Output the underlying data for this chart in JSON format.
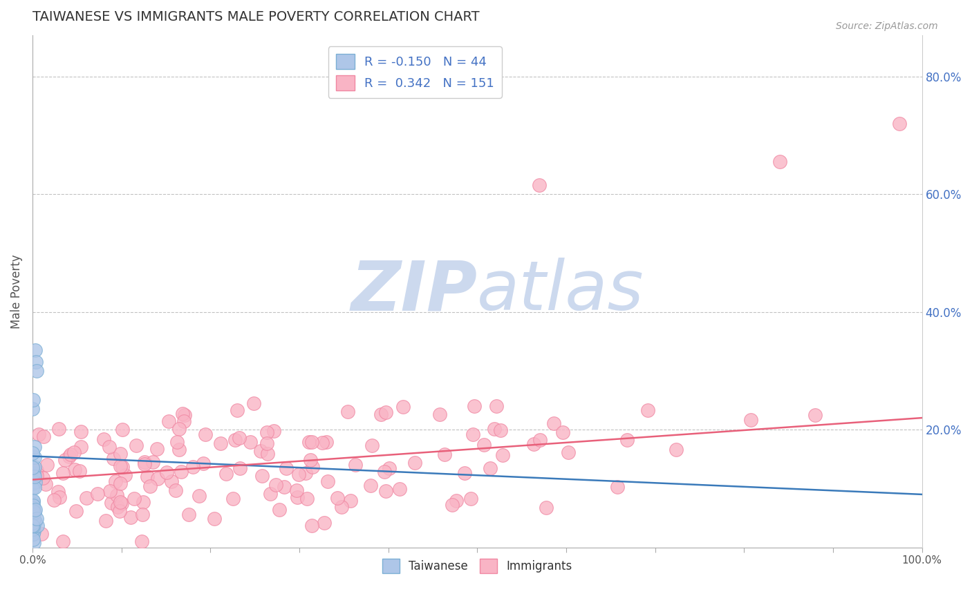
{
  "title": "TAIWANESE VS IMMIGRANTS MALE POVERTY CORRELATION CHART",
  "source": "Source: ZipAtlas.com",
  "ylabel": "Male Poverty",
  "xlim": [
    0,
    1.0
  ],
  "ylim": [
    -0.02,
    0.87
  ],
  "plot_ylim": [
    0.0,
    0.87
  ],
  "xticks": [
    0.0,
    0.1,
    0.2,
    0.3,
    0.4,
    0.5,
    0.6,
    0.7,
    0.8,
    0.9,
    1.0
  ],
  "xtick_labels_show": [
    "0.0%",
    "",
    "",
    "",
    "",
    "",
    "",
    "",
    "",
    "",
    "100.0%"
  ],
  "yticks_right": [
    0.2,
    0.4,
    0.6,
    0.8
  ],
  "ytick_right_labels": [
    "20.0%",
    "40.0%",
    "60.0%",
    "80.0%"
  ],
  "blue_R": -0.15,
  "blue_N": 44,
  "pink_R": 0.342,
  "pink_N": 151,
  "blue_scatter_color": "#aec6e8",
  "blue_scatter_edge": "#7bafd4",
  "pink_scatter_color": "#f9b4c5",
  "pink_scatter_edge": "#f087a2",
  "blue_line_color": "#3a7aba",
  "pink_line_color": "#e8607a",
  "watermark_color": "#ccd9ee",
  "title_color": "#333333",
  "axis_label_color": "#555555",
  "tick_label_color": "#4472c4",
  "background_color": "#ffffff",
  "grid_color": "#bbbbbb",
  "seed": 7,
  "blue_line_y0": 0.155,
  "blue_line_y1": 0.09,
  "pink_line_y0": 0.115,
  "pink_line_y1": 0.22
}
